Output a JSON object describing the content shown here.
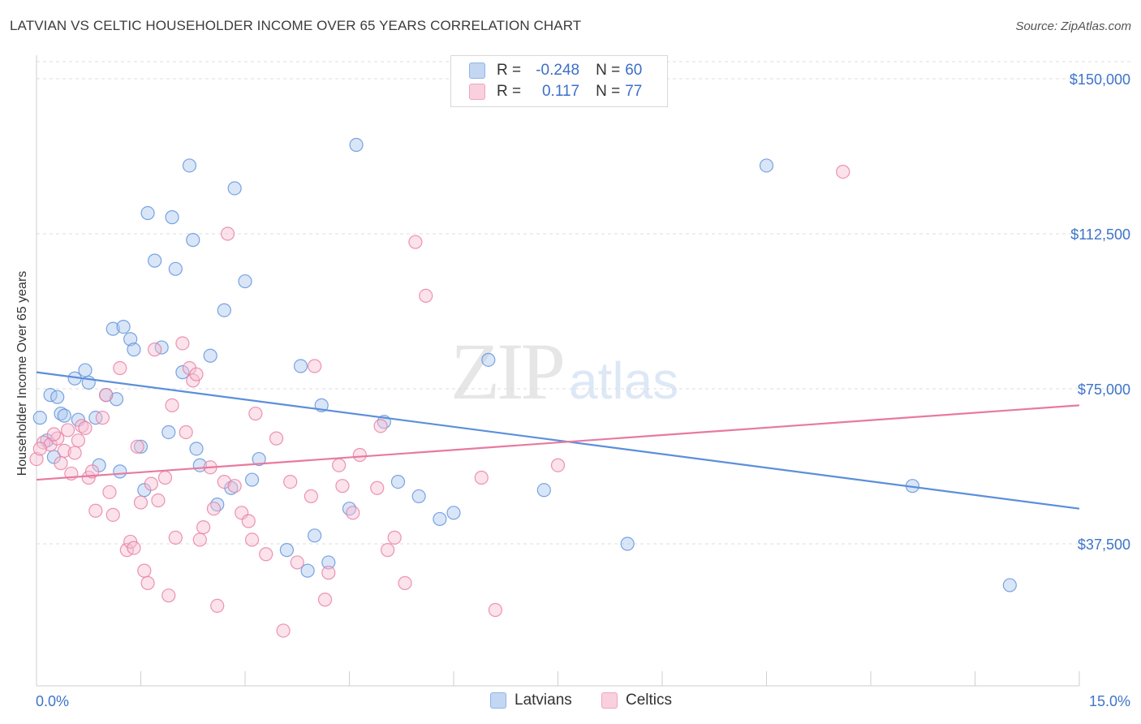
{
  "title": "LATVIAN VS CELTIC HOUSEHOLDER INCOME OVER 65 YEARS CORRELATION CHART",
  "source": "Source: ZipAtlas.com",
  "watermark": {
    "zip": "ZIP",
    "atlas": "atlas"
  },
  "legend": {
    "rows": [
      {
        "r_label": "R =",
        "r_value": "-0.248",
        "n_label": "N =",
        "n_value": "60",
        "color": "#8fb3e8"
      },
      {
        "r_label": "R =",
        "r_value": "0.117",
        "n_label": "N =",
        "n_value": "77",
        "color": "#f2a3bf"
      }
    ]
  },
  "bottom_legend": [
    "Latvians",
    "Celtics"
  ],
  "chart_data": {
    "type": "scatter",
    "title": "LATVIAN VS CELTIC HOUSEHOLDER INCOME OVER 65 YEARS CORRELATION CHART",
    "xlabel": "",
    "ylabel": "Householder Income Over 65 years",
    "xlim": [
      0,
      15
    ],
    "ylim": [
      5000,
      155000
    ],
    "x_tick_labels": [
      "0.0%",
      "15.0%"
    ],
    "y_ticks": [
      37500,
      75000,
      112500,
      150000
    ],
    "y_tick_labels": [
      "$37,500",
      "$75,000",
      "$112,500",
      "$150,000"
    ],
    "grid": "horizontal dashed",
    "series": [
      {
        "name": "Latvians",
        "color": "#5b8fd9",
        "fill": "#aac8f0",
        "trend": {
          "x": [
            0,
            15
          ],
          "y": [
            79000,
            46000
          ]
        },
        "points": [
          [
            0.05,
            68000
          ],
          [
            0.2,
            73500
          ],
          [
            0.3,
            73000
          ],
          [
            0.35,
            69000
          ],
          [
            0.4,
            68500
          ],
          [
            0.55,
            77500
          ],
          [
            0.7,
            79500
          ],
          [
            0.75,
            76500
          ],
          [
            0.85,
            68000
          ],
          [
            0.9,
            56500
          ],
          [
            1.0,
            73500
          ],
          [
            1.1,
            89500
          ],
          [
            1.15,
            72500
          ],
          [
            1.2,
            55000
          ],
          [
            1.25,
            90000
          ],
          [
            1.35,
            87000
          ],
          [
            1.4,
            84500
          ],
          [
            1.5,
            61000
          ],
          [
            1.55,
            50500
          ],
          [
            1.6,
            117500
          ],
          [
            1.7,
            106000
          ],
          [
            1.8,
            85000
          ],
          [
            1.9,
            64500
          ],
          [
            1.95,
            116500
          ],
          [
            2.0,
            104000
          ],
          [
            2.1,
            79000
          ],
          [
            2.2,
            129000
          ],
          [
            2.25,
            111000
          ],
          [
            2.3,
            60500
          ],
          [
            2.35,
            56500
          ],
          [
            2.5,
            83000
          ],
          [
            2.6,
            47000
          ],
          [
            2.7,
            94000
          ],
          [
            2.8,
            51000
          ],
          [
            2.85,
            123500
          ],
          [
            3.0,
            101000
          ],
          [
            3.1,
            53000
          ],
          [
            3.2,
            58000
          ],
          [
            3.6,
            36000
          ],
          [
            3.8,
            80500
          ],
          [
            3.9,
            31000
          ],
          [
            4.0,
            39500
          ],
          [
            4.1,
            71000
          ],
          [
            4.2,
            33000
          ],
          [
            4.5,
            46000
          ],
          [
            4.6,
            134000
          ],
          [
            5.0,
            67000
          ],
          [
            5.2,
            52500
          ],
          [
            5.5,
            49000
          ],
          [
            5.8,
            43500
          ],
          [
            6.0,
            45000
          ],
          [
            6.5,
            82000
          ],
          [
            7.3,
            50500
          ],
          [
            8.5,
            37500
          ],
          [
            10.5,
            129000
          ],
          [
            12.6,
            51500
          ],
          [
            14.0,
            27500
          ],
          [
            0.15,
            62500
          ],
          [
            0.25,
            58500
          ],
          [
            0.6,
            67500
          ]
        ]
      },
      {
        "name": "Celtics",
        "color": "#e77aa0",
        "fill": "#f6bfd2",
        "trend": {
          "x": [
            0,
            15
          ],
          "y": [
            53000,
            71000
          ]
        },
        "points": [
          [
            0.0,
            58000
          ],
          [
            0.1,
            62000
          ],
          [
            0.2,
            61500
          ],
          [
            0.3,
            63000
          ],
          [
            0.4,
            60000
          ],
          [
            0.45,
            65000
          ],
          [
            0.5,
            54500
          ],
          [
            0.55,
            59500
          ],
          [
            0.6,
            62500
          ],
          [
            0.65,
            66000
          ],
          [
            0.7,
            65500
          ],
          [
            0.75,
            53500
          ],
          [
            0.8,
            55000
          ],
          [
            0.85,
            45500
          ],
          [
            0.95,
            68000
          ],
          [
            1.0,
            73500
          ],
          [
            1.05,
            50000
          ],
          [
            1.1,
            44500
          ],
          [
            1.2,
            80000
          ],
          [
            1.3,
            36000
          ],
          [
            1.35,
            38000
          ],
          [
            1.4,
            36500
          ],
          [
            1.45,
            61000
          ],
          [
            1.5,
            47500
          ],
          [
            1.55,
            31000
          ],
          [
            1.6,
            28000
          ],
          [
            1.65,
            52000
          ],
          [
            1.7,
            84500
          ],
          [
            1.75,
            48000
          ],
          [
            1.85,
            53500
          ],
          [
            1.9,
            25000
          ],
          [
            1.95,
            71000
          ],
          [
            2.0,
            39000
          ],
          [
            2.1,
            86000
          ],
          [
            2.15,
            64500
          ],
          [
            2.2,
            80000
          ],
          [
            2.25,
            77000
          ],
          [
            2.3,
            78500
          ],
          [
            2.35,
            38500
          ],
          [
            2.4,
            41500
          ],
          [
            2.5,
            56000
          ],
          [
            2.55,
            46000
          ],
          [
            2.6,
            22500
          ],
          [
            2.7,
            52500
          ],
          [
            2.75,
            112500
          ],
          [
            2.85,
            51500
          ],
          [
            2.95,
            45000
          ],
          [
            3.05,
            43000
          ],
          [
            3.1,
            38500
          ],
          [
            3.15,
            69000
          ],
          [
            3.3,
            35000
          ],
          [
            3.45,
            63000
          ],
          [
            3.55,
            16500
          ],
          [
            3.65,
            52500
          ],
          [
            3.75,
            33000
          ],
          [
            3.95,
            49000
          ],
          [
            4.0,
            80500
          ],
          [
            4.15,
            24000
          ],
          [
            4.2,
            30500
          ],
          [
            4.35,
            56500
          ],
          [
            4.4,
            51500
          ],
          [
            4.55,
            45000
          ],
          [
            4.65,
            59000
          ],
          [
            4.9,
            51000
          ],
          [
            4.95,
            66000
          ],
          [
            5.05,
            36000
          ],
          [
            5.15,
            39000
          ],
          [
            5.3,
            28000
          ],
          [
            5.45,
            110500
          ],
          [
            5.6,
            97500
          ],
          [
            6.4,
            53500
          ],
          [
            6.6,
            21500
          ],
          [
            7.5,
            56500
          ],
          [
            11.6,
            127500
          ],
          [
            0.25,
            64000
          ],
          [
            0.35,
            57000
          ],
          [
            0.05,
            60500
          ]
        ]
      }
    ]
  }
}
